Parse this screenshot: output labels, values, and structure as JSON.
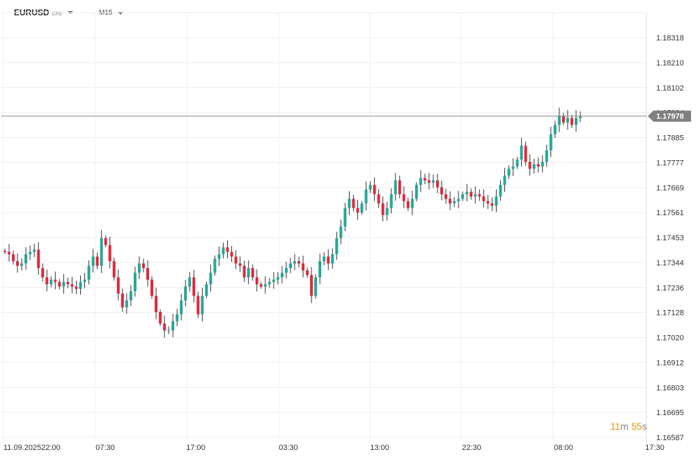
{
  "toolbar": {
    "symbol": "EURUSD",
    "symbol_type": "CFD",
    "timeframe": "M15"
  },
  "countdown": {
    "minutes": "11",
    "minutes_unit": "m",
    "seconds": "55",
    "seconds_unit": "s"
  },
  "colors": {
    "up": "#26a69a",
    "down": "#e0283c",
    "grid": "#ececec",
    "price_line": "#888888",
    "price_tag_bg": "#808080"
  },
  "chart_data": {
    "type": "candlestick",
    "title": "",
    "xlabel": "",
    "ylabel": "",
    "ylim": [
      1.16587,
      1.18426
    ],
    "y_ticks": [
      "1.18318",
      "1.18210",
      "1.18102",
      "1.17994",
      "1.17885",
      "1.17777",
      "1.17669",
      "1.17561",
      "1.17453",
      "1.17344",
      "1.17236",
      "1.17128",
      "1.17020",
      "1.16912",
      "1.16803",
      "1.16695",
      "1.16587"
    ],
    "x_ticks": [
      "11.09.2025",
      "22:00",
      "07:30",
      "17:00",
      "03:30",
      "13:00",
      "22:30",
      "08:00",
      "17:30"
    ],
    "current_price": "1.17978",
    "close_series": [
      1.1739,
      1.1738,
      1.1735,
      1.1733,
      1.1734,
      1.1738,
      1.1739,
      1.174,
      1.1732,
      1.1728,
      1.1725,
      1.1727,
      1.1726,
      1.1724,
      1.1726,
      1.1725,
      1.1724,
      1.1723,
      1.1726,
      1.1727,
      1.1733,
      1.1737,
      1.1733,
      1.1745,
      1.1742,
      1.1735,
      1.1728,
      1.1721,
      1.1715,
      1.1718,
      1.1722,
      1.173,
      1.1734,
      1.1732,
      1.1727,
      1.172,
      1.1713,
      1.1708,
      1.1705,
      1.1705,
      1.1709,
      1.1712,
      1.1718,
      1.1724,
      1.1728,
      1.172,
      1.1712,
      1.172,
      1.1725,
      1.173,
      1.1736,
      1.1738,
      1.1741,
      1.1739,
      1.1737,
      1.1734,
      1.1733,
      1.1728,
      1.1732,
      1.1728,
      1.1725,
      1.1724,
      1.1725,
      1.1726,
      1.1727,
      1.1728,
      1.173,
      1.1732,
      1.1734,
      1.1735,
      1.1734,
      1.1731,
      1.1729,
      1.172,
      1.1728,
      1.1735,
      1.1737,
      1.1734,
      1.1738,
      1.1745,
      1.175,
      1.1758,
      1.1762,
      1.1758,
      1.1756,
      1.176,
      1.1766,
      1.1768,
      1.1764,
      1.176,
      1.1755,
      1.1758,
      1.1764,
      1.177,
      1.1764,
      1.1761,
      1.1758,
      1.1762,
      1.1768,
      1.1771,
      1.177,
      1.1769,
      1.177,
      1.1767,
      1.1764,
      1.1762,
      1.176,
      1.1761,
      1.1762,
      1.1764,
      1.1765,
      1.1763,
      1.1764,
      1.1763,
      1.1761,
      1.176,
      1.1759,
      1.1763,
      1.1768,
      1.1772,
      1.1775,
      1.1776,
      1.1779,
      1.1785,
      1.1778,
      1.1775,
      1.1777,
      1.1776,
      1.1778,
      1.1783,
      1.179,
      1.1794,
      1.1798,
      1.1795,
      1.1797,
      1.1794,
      1.1797,
      1.17978
    ]
  }
}
